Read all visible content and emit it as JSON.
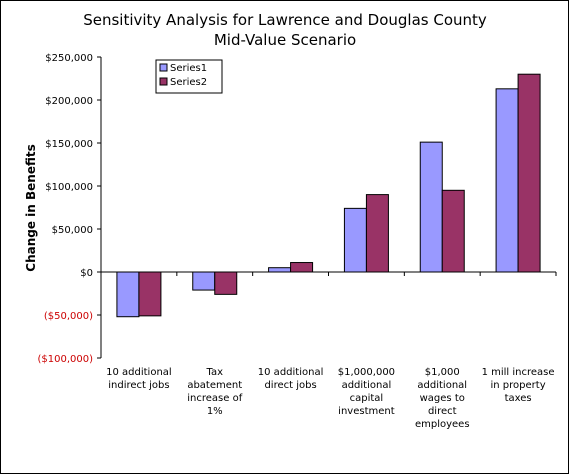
{
  "chart_data": {
    "type": "bar",
    "title": "Sensitivity Analysis for Lawrence and Douglas County",
    "subtitle": "Mid-Value Scenario",
    "ylabel": "Change in Benefits",
    "xlabel": "",
    "ylim": [
      -100000,
      250000
    ],
    "ytick_step": 50000,
    "yticks": [
      "($100,000)",
      "($50,000)",
      "$0",
      "$50,000",
      "$100,000",
      "$150,000",
      "$200,000",
      "$250,000"
    ],
    "negative_tick_color": "#cc0000",
    "grid": false,
    "legend_position": "top-left",
    "categories": [
      [
        "10 additional",
        "indirect jobs"
      ],
      [
        "Tax",
        "abatement",
        "increase of",
        "1%"
      ],
      [
        "10 additional",
        "direct jobs"
      ],
      [
        "$1,000,000",
        "additional",
        "capital",
        "investment"
      ],
      [
        "$1,000",
        "additional",
        "wages to",
        "direct",
        "employees"
      ],
      [
        "1 mill increase",
        "in property",
        "taxes"
      ]
    ],
    "series": [
      {
        "name": "Series1",
        "color": "#9999ff",
        "values": [
          -52000,
          -21000,
          5000,
          74000,
          151000,
          213000
        ]
      },
      {
        "name": "Series2",
        "color": "#993366",
        "values": [
          -51000,
          -26000,
          11000,
          90000,
          95000,
          230000
        ]
      }
    ]
  }
}
